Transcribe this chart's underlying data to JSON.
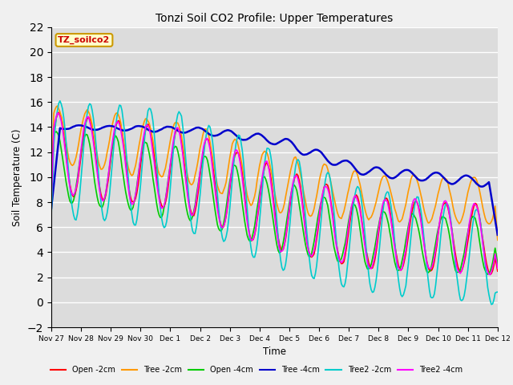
{
  "title": "Tonzi Soil CO2 Profile: Upper Temperatures",
  "xlabel": "Time",
  "ylabel": "Soil Temperature (C)",
  "ylim": [
    -2,
    22
  ],
  "yticks": [
    -2,
    0,
    2,
    4,
    6,
    8,
    10,
    12,
    14,
    16,
    18,
    20,
    22
  ],
  "x_tick_labels": [
    "Nov 27",
    "Nov 28",
    "Nov 29",
    "Nov 30",
    "Dec 1",
    "Dec 2",
    "Dec 3",
    "Dec 4",
    "Dec 5",
    "Dec 6",
    "Dec 7",
    "Dec 8",
    "Dec 9",
    "Dec 10",
    "Dec 11",
    "Dec 12"
  ],
  "fig_bg": "#f0f0f0",
  "plot_bg": "#dcdcdc",
  "grid_color": "#ffffff",
  "series": [
    {
      "label": "Open -2cm",
      "color": "#ff0000"
    },
    {
      "label": "Tree -2cm",
      "color": "#ff9900"
    },
    {
      "label": "Open -4cm",
      "color": "#00cc00"
    },
    {
      "label": "Tree -4cm",
      "color": "#0000cc"
    },
    {
      "label": "Tree2 -2cm",
      "color": "#00cccc"
    },
    {
      "label": "Tree2 -4cm",
      "color": "#ff00ff"
    }
  ],
  "annotation_text": "TZ_soilco2",
  "annotation_color": "#cc0000",
  "annotation_bg": "#ffffcc",
  "annotation_border": "#cc9900",
  "n_days": 15,
  "hours_per_day": 24
}
